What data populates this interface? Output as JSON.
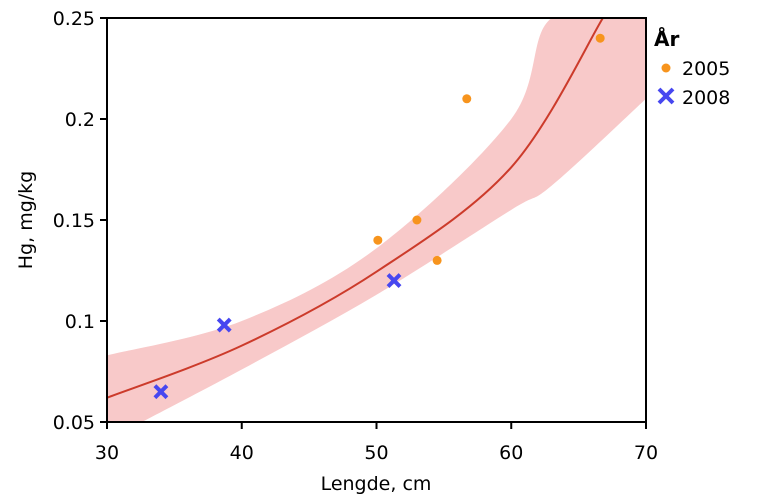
{
  "chart_data": {
    "type": "scatter",
    "xlabel": "Lengde, cm",
    "ylabel": "Hg, mg/kg",
    "xlim": [
      30,
      70
    ],
    "ylim": [
      0.05,
      0.25
    ],
    "xticks": [
      30,
      40,
      50,
      60,
      70
    ],
    "xtick_labels": [
      "30",
      "40",
      "50",
      "60",
      "70"
    ],
    "yticks": [
      0.05,
      0.1,
      0.15,
      0.2,
      0.25
    ],
    "ytick_labels": [
      "0.05",
      "0.1",
      "0.15",
      "0.2",
      "0.25"
    ],
    "grid": false,
    "legend": {
      "title": "År",
      "placement": "right-top",
      "entries": [
        "2005",
        "2008"
      ]
    },
    "series": [
      {
        "name": "2005",
        "marker": "dot",
        "color": "#f7941d",
        "points": [
          {
            "x": 50.1,
            "y": 0.14
          },
          {
            "x": 53.0,
            "y": 0.15
          },
          {
            "x": 54.5,
            "y": 0.13
          },
          {
            "x": 56.7,
            "y": 0.21
          },
          {
            "x": 66.6,
            "y": 0.24
          }
        ]
      },
      {
        "name": "2008",
        "marker": "x",
        "color": "#4747f0",
        "points": [
          {
            "x": 34.0,
            "y": 0.065
          },
          {
            "x": 38.7,
            "y": 0.098
          },
          {
            "x": 51.3,
            "y": 0.12
          }
        ]
      }
    ],
    "fit": {
      "type": "exponential",
      "color": "#cc3b2b",
      "band_color": "#f8c9c9",
      "line": [
        {
          "x": 30,
          "y": 0.062
        },
        {
          "x": 40,
          "y": 0.0878
        },
        {
          "x": 50,
          "y": 0.1244
        },
        {
          "x": 60,
          "y": 0.1761
        },
        {
          "x": 66.8,
          "y": 0.25
        }
      ],
      "band": [
        {
          "x": 30,
          "lo": 0.041,
          "hi": 0.083
        },
        {
          "x": 40,
          "lo": 0.076,
          "hi": 0.1
        },
        {
          "x": 50,
          "lo": 0.113,
          "hi": 0.136
        },
        {
          "x": 60,
          "lo": 0.155,
          "hi": 0.2
        },
        {
          "x": 63,
          "lo": 0.167,
          "hi": 0.25
        },
        {
          "x": 70,
          "lo": 0.21,
          "hi": 0.25
        }
      ]
    }
  }
}
